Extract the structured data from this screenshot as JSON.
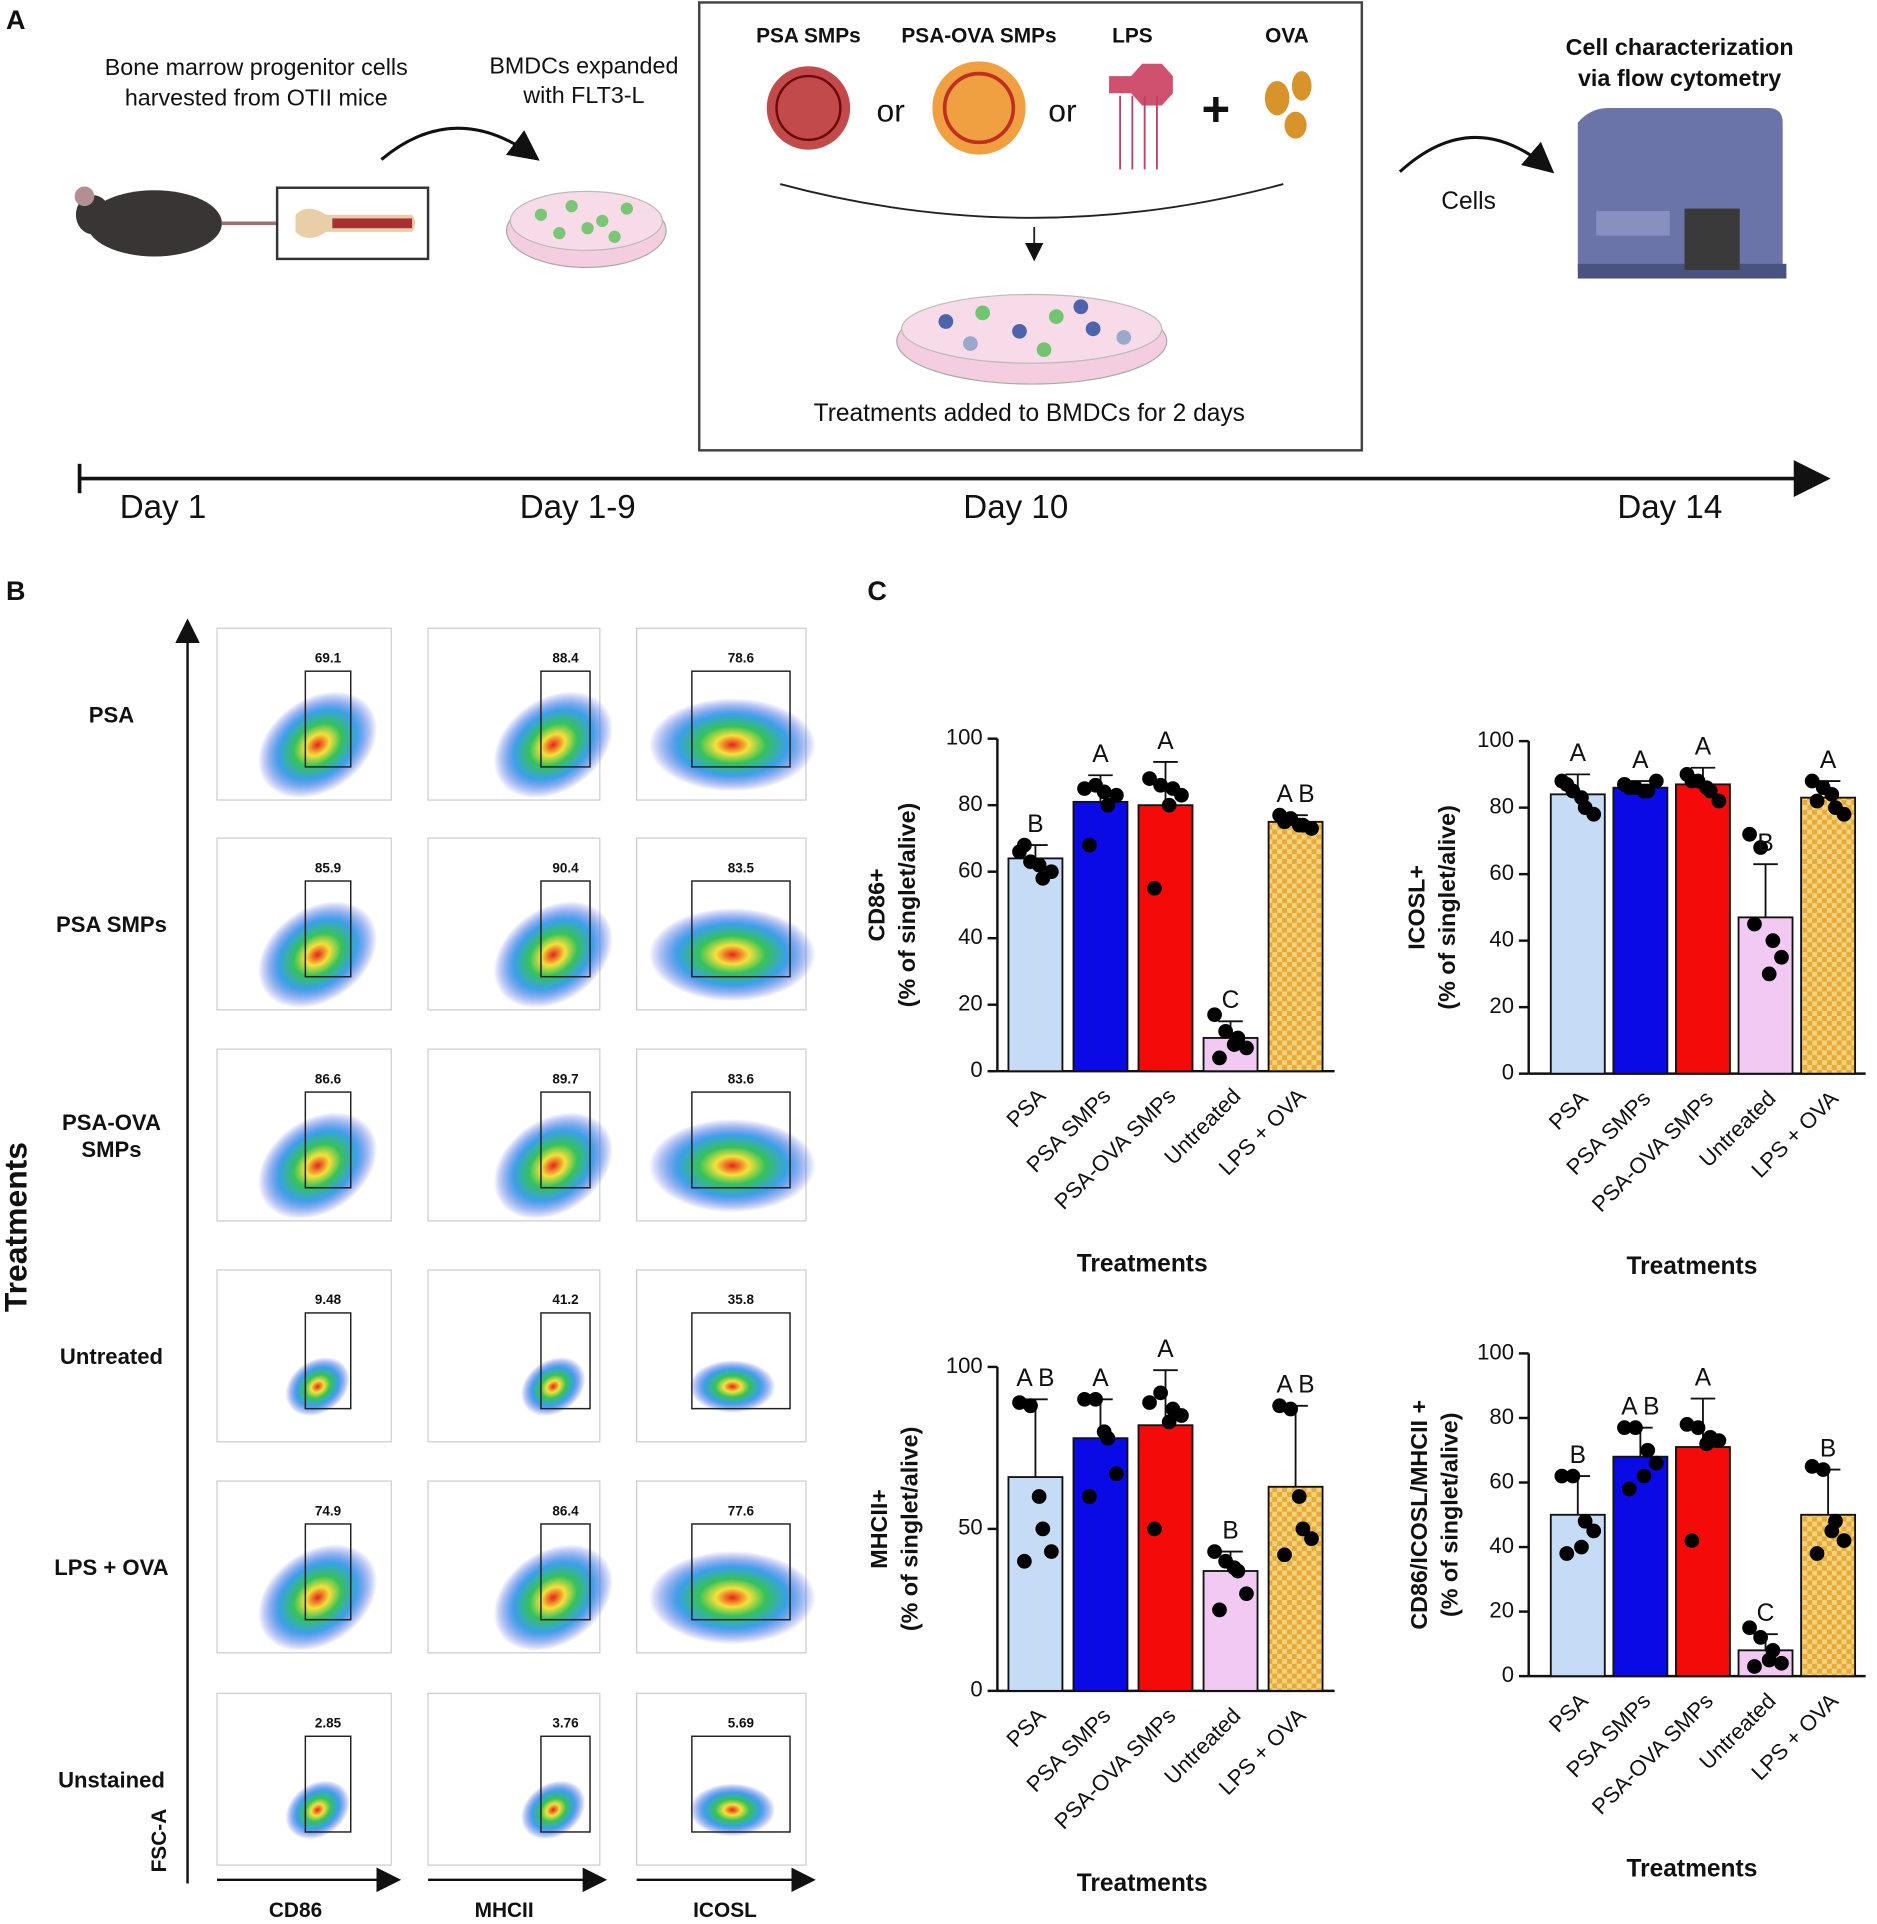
{
  "panel_a": {
    "label": "A",
    "step1": [
      "Bone marrow progenitor cells",
      "harvested from OTII mice"
    ],
    "step2": [
      "BMDCs expanded",
      "with FLT3-L"
    ],
    "treatments": [
      "PSA SMPs",
      "PSA-OVA SMPs",
      "LPS",
      "OVA"
    ],
    "connectors": [
      "or",
      "or",
      "+"
    ],
    "treatment_caption": "Treatments added to BMDCs for 2 days",
    "step3": [
      "Cell characterization",
      "via flow cytometry"
    ],
    "arrow_label": "Cells",
    "timeline": [
      "Day 1",
      "Day 1-9",
      "Day 10",
      "Day 14"
    ]
  },
  "panel_b": {
    "label": "B",
    "y_axis": "Treatments",
    "fsc": "FSC-A",
    "markers": [
      "CD86",
      "MHCII",
      "ICOSL"
    ],
    "rows": [
      {
        "name": [
          "PSA"
        ],
        "gates": [
          69.1,
          88.4,
          78.6
        ]
      },
      {
        "name": [
          "PSA SMPs"
        ],
        "gates": [
          85.9,
          90.4,
          83.5
        ]
      },
      {
        "name": [
          "PSA-OVA",
          "SMPs"
        ],
        "gates": [
          86.6,
          89.7,
          83.6
        ]
      },
      {
        "name": [
          "Untreated"
        ],
        "gates": [
          9.48,
          41.2,
          35.8
        ]
      },
      {
        "name": [
          "LPS + OVA"
        ],
        "gates": [
          74.9,
          86.4,
          77.6
        ]
      },
      {
        "name": [
          "Unstained"
        ],
        "gates": [
          2.85,
          3.76,
          5.69
        ]
      }
    ]
  },
  "panel_c_label": "C",
  "chart_data": [
    {
      "type": "bar",
      "ylabel": [
        "CD86+",
        "(% of singlet/alive)"
      ],
      "xlabel": "Treatments",
      "categories": [
        "PSA",
        "PSA SMPs",
        "PSA-OVA SMPs",
        "Untreated",
        "LPS + OVA"
      ],
      "values": [
        64,
        81,
        80,
        10,
        75
      ],
      "errors": [
        4,
        8,
        13,
        5,
        2
      ],
      "points": [
        [
          66,
          63,
          58,
          60,
          68,
          62
        ],
        [
          85,
          86,
          80,
          83,
          68,
          84
        ],
        [
          88,
          86,
          85,
          83,
          55,
          80
        ],
        [
          17,
          12,
          10,
          7,
          4,
          8
        ],
        [
          77,
          76,
          74,
          73,
          75,
          74
        ]
      ],
      "annotations": [
        "B",
        "A",
        "A",
        "C",
        "A B"
      ],
      "colors": [
        "#c6dbf5",
        "#0a0ae6",
        "#f50a0a",
        "#f2c9f2",
        "#f5d37a"
      ],
      "fill_patterns": [
        null,
        null,
        null,
        null,
        "checker"
      ],
      "ylim": [
        0,
        100
      ],
      "yticks": [
        0,
        20,
        40,
        60,
        80,
        100
      ]
    },
    {
      "type": "bar",
      "ylabel": [
        "ICOSL+",
        "(% of singlet/alive)"
      ],
      "xlabel": "Treatments",
      "categories": [
        "PSA",
        "PSA SMPs",
        "PSA-OVA SMPs",
        "Untreated",
        "LPS + OVA"
      ],
      "values": [
        84,
        86,
        87,
        47,
        83
      ],
      "errors": [
        6,
        2,
        5,
        16,
        5
      ],
      "points": [
        [
          88,
          85,
          80,
          78,
          87,
          83
        ],
        [
          87,
          86,
          85,
          88,
          86,
          85
        ],
        [
          90,
          88,
          85,
          82,
          88,
          86
        ],
        [
          72,
          68,
          40,
          35,
          45,
          30
        ],
        [
          88,
          86,
          80,
          78,
          82,
          84
        ]
      ],
      "annotations": [
        "A",
        "A",
        "A",
        "B",
        "A"
      ],
      "colors": [
        "#c6dbf5",
        "#0a0ae6",
        "#f50a0a",
        "#f2c9f2",
        "#f5d37a"
      ],
      "fill_patterns": [
        null,
        null,
        null,
        null,
        "checker"
      ],
      "ylim": [
        0,
        100
      ],
      "yticks": [
        0,
        20,
        40,
        60,
        80,
        100
      ]
    },
    {
      "type": "bar",
      "ylabel": [
        "MHCII+",
        "(% of singlet/alive)"
      ],
      "xlabel": "Treatments",
      "categories": [
        "PSA",
        "PSA SMPs",
        "PSA-OVA SMPs",
        "Untreated",
        "LPS + OVA"
      ],
      "values": [
        66,
        78,
        82,
        37,
        63
      ],
      "errors": [
        24,
        12,
        17,
        6,
        25
      ],
      "points": [
        [
          89,
          88,
          50,
          43,
          40,
          60
        ],
        [
          90,
          90,
          78,
          67,
          60,
          80
        ],
        [
          89,
          92,
          87,
          85,
          50,
          83
        ],
        [
          43,
          40,
          37,
          30,
          25,
          38
        ],
        [
          88,
          87,
          50,
          47,
          42,
          60
        ]
      ],
      "annotations": [
        "A B",
        "A",
        "A",
        "B",
        "A B"
      ],
      "colors": [
        "#c6dbf5",
        "#0a0ae6",
        "#f50a0a",
        "#f2c9f2",
        "#f5d37a"
      ],
      "fill_patterns": [
        null,
        null,
        null,
        null,
        "checker"
      ],
      "ylim": [
        0,
        100
      ],
      "yticks": [
        0,
        50,
        100
      ]
    },
    {
      "type": "bar",
      "ylabel": [
        "CD86/ICOSL/MHCII +",
        "(% of singlet/alive)"
      ],
      "xlabel": "Treatments",
      "categories": [
        "PSA",
        "PSA SMPs",
        "PSA-OVA SMPs",
        "Untreated",
        "LPS + OVA"
      ],
      "values": [
        50,
        68,
        71,
        8,
        50
      ],
      "errors": [
        12,
        9,
        15,
        5,
        14
      ],
      "points": [
        [
          62,
          62,
          48,
          45,
          38,
          40
        ],
        [
          77,
          77,
          70,
          66,
          58,
          62
        ],
        [
          78,
          77,
          74,
          73,
          42,
          72
        ],
        [
          15,
          12,
          8,
          4,
          3,
          5
        ],
        [
          65,
          64,
          48,
          42,
          38,
          45
        ]
      ],
      "annotations": [
        "B",
        "A B",
        "A",
        "C",
        "B"
      ],
      "colors": [
        "#c6dbf5",
        "#0a0ae6",
        "#f50a0a",
        "#f2c9f2",
        "#f5d37a"
      ],
      "fill_patterns": [
        null,
        null,
        null,
        null,
        "checker"
      ],
      "ylim": [
        0,
        100
      ],
      "yticks": [
        0,
        20,
        40,
        60,
        80,
        100
      ]
    }
  ]
}
